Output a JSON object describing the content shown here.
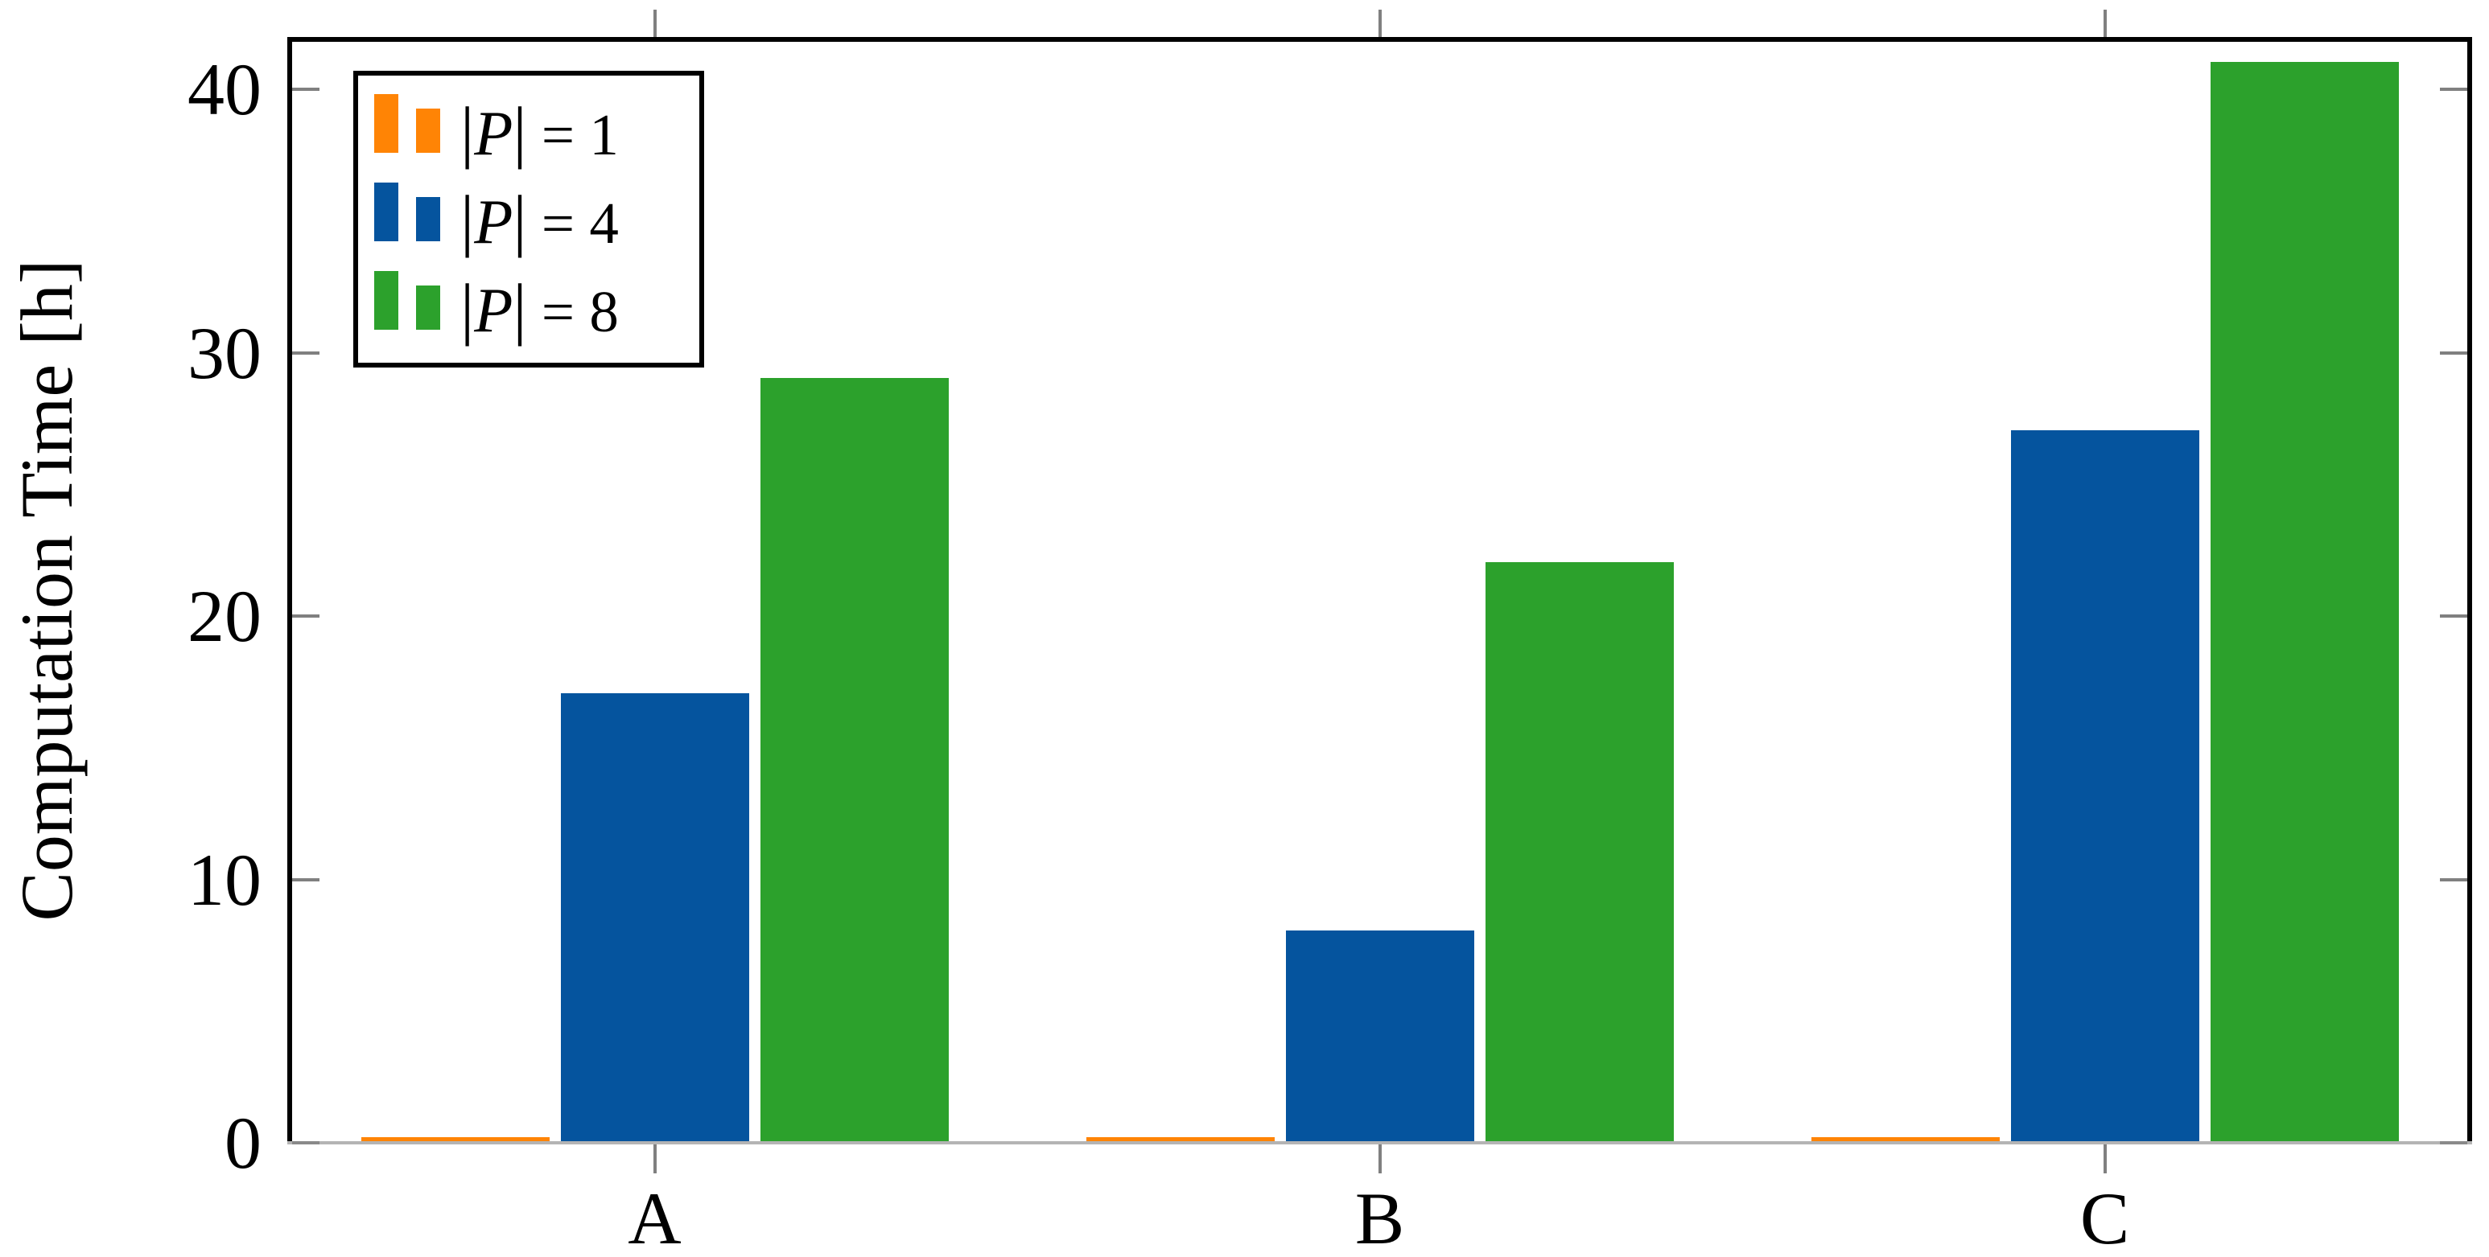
{
  "figure": {
    "background": "#ffffff",
    "kind": "pgfplots-style grouped bar chart"
  },
  "chart_data": {
    "type": "bar",
    "title": "",
    "xlabel": "",
    "ylabel": "Computation Time [h]",
    "categories": [
      "A",
      "B",
      "C"
    ],
    "series": [
      {
        "name": "|𝒫| = 1",
        "p_value": "1",
        "color": "#FF8405",
        "values": [
          0.1,
          0.1,
          0.1
        ],
        "legend_parts": {
          "bar_open": "|",
          "symbol": "P",
          "bar_close": "|",
          "relation": " = ",
          "value": "1"
        }
      },
      {
        "name": "|𝒫| = 4",
        "p_value": "4",
        "color": "#05549E",
        "values": [
          17,
          8,
          27
        ],
        "legend_parts": {
          "bar_open": "|",
          "symbol": "P",
          "bar_close": "|",
          "relation": " = ",
          "value": "4"
        }
      },
      {
        "name": "|𝒫| = 8",
        "p_value": "8",
        "color": "#2CA12C",
        "values": [
          29,
          22,
          41
        ],
        "legend_parts": {
          "bar_open": "|",
          "symbol": "P",
          "bar_close": "|",
          "relation": " = ",
          "value": "8"
        }
      }
    ],
    "ylim": [
      0,
      42
    ],
    "yticks": [
      0,
      10,
      20,
      30,
      40
    ],
    "xticks_mirrored_top": true,
    "grid": false,
    "legend_position": "top-left",
    "axis_colors": {
      "frame": "#000000",
      "tick_marks": "#808080",
      "baseline": "#b4b4b4",
      "baseline_zero_tick": "#8a8a8a",
      "text": "#000000"
    }
  }
}
